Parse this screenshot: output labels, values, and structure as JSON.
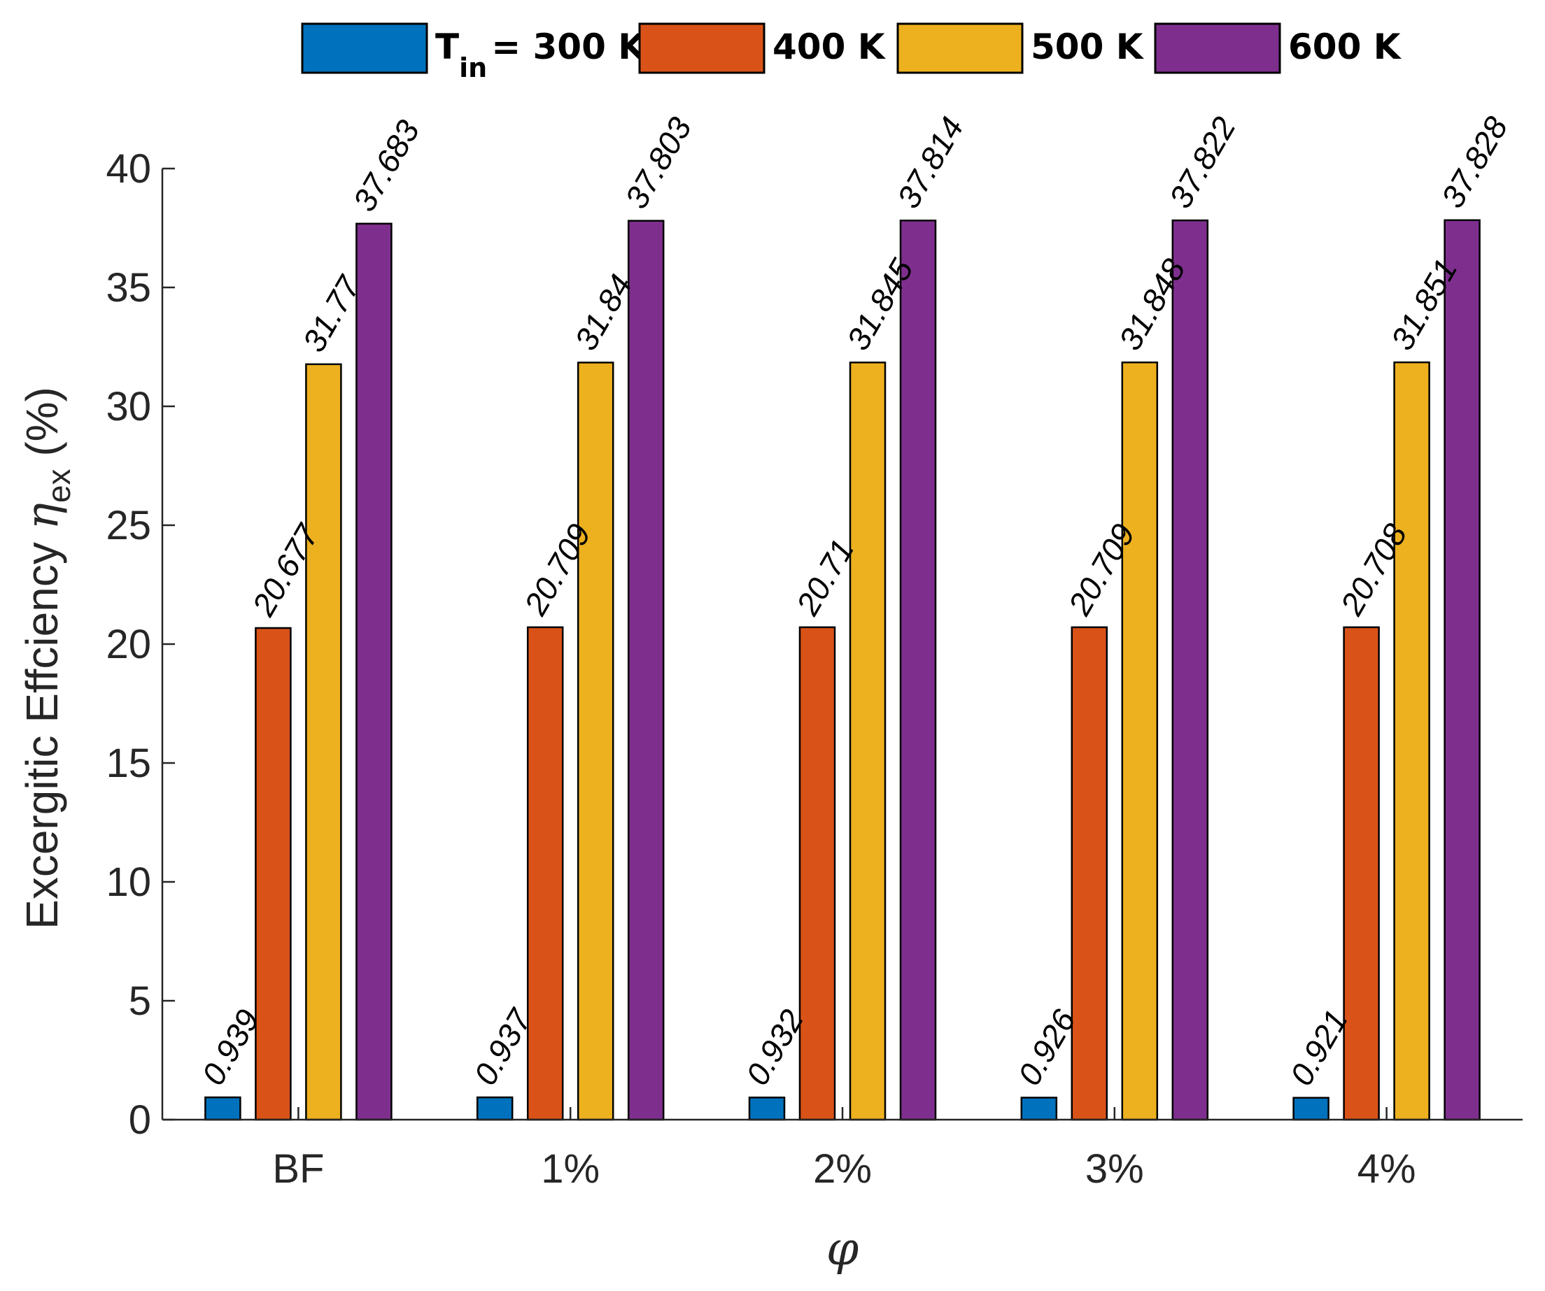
{
  "chart_data": {
    "type": "bar",
    "title": "",
    "xlabel": "φ",
    "ylabel": {
      "main": "Excergitic Effciency ",
      "symbol": "η",
      "subscript": "ex",
      "unit": " (%)"
    },
    "categories": [
      "BF",
      "1%",
      "2%",
      "3%",
      "4%"
    ],
    "ylim": [
      0,
      40
    ],
    "yticks": [
      0,
      5,
      10,
      15,
      20,
      25,
      30,
      35,
      40
    ],
    "series": [
      {
        "name": "T_in = 300 K",
        "color": "#0072BD",
        "values": [
          0.939,
          0.937,
          0.932,
          0.926,
          0.921
        ]
      },
      {
        "name": "400 K",
        "color": "#D95319",
        "values": [
          20.677,
          20.709,
          20.71,
          20.709,
          20.708
        ]
      },
      {
        "name": "500 K",
        "color": "#EDB120",
        "values": [
          31.77,
          31.84,
          31.845,
          31.848,
          31.851
        ]
      },
      {
        "name": "600 K",
        "color": "#7E2F8E",
        "values": [
          37.683,
          37.803,
          37.814,
          37.822,
          37.828
        ]
      }
    ],
    "legend": {
      "placement": "top",
      "entries": [
        {
          "main": "T",
          "sub": "in",
          "rest": "= 300 K"
        },
        {
          "main": "400 K"
        },
        {
          "main": "500 K"
        },
        {
          "main": "600 K"
        }
      ]
    }
  }
}
